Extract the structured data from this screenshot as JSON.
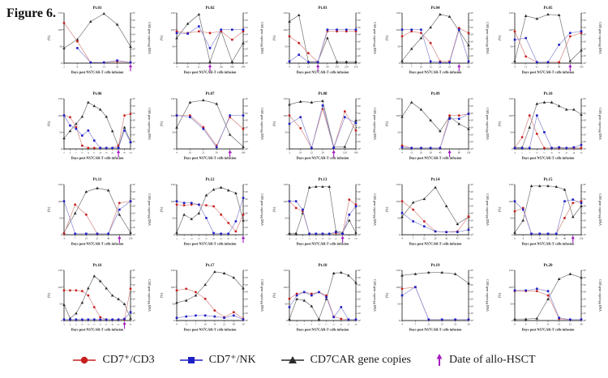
{
  "figure_label": "Figure 6.",
  "axes": {
    "left_label": "(%)",
    "right_label": "CAR gene copies/μg DNA",
    "x_label": "Days post NS7CAR-T cells infusion",
    "left_ticks": [
      0,
      50,
      100,
      150
    ],
    "left_range": [
      0,
      150
    ],
    "right_tick_exponents": [
      0,
      1,
      2,
      3,
      4,
      5,
      6,
      7
    ],
    "right_scale": "log10"
  },
  "colors": {
    "red": "#c81e1e",
    "red_line": "#d4847f",
    "blue": "#1e1ec8",
    "blue_line": "#8585d0",
    "black": "#2b2b2b",
    "black_line": "#6f6f6f",
    "purple": "#a61bc2",
    "axis": "#333333",
    "text": "#111111"
  },
  "legend": [
    {
      "name": "cd7-cd3",
      "label": "CD7⁺/CD3",
      "marker": "circle",
      "color": "#c81e1e"
    },
    {
      "name": "cd7-nk",
      "label": "CD7⁺/NK",
      "marker": "square",
      "color": "#1e1ec8"
    },
    {
      "name": "car-gene-copies",
      "label": "CD7CAR gene copies",
      "marker": "triangle",
      "color": "#2b2b2b"
    },
    {
      "name": "allo-hsct-date",
      "label": "Date of allo-HSCT",
      "marker": "arrow",
      "color": "#a61bc2"
    }
  ],
  "chart_data": [
    {
      "type": "line",
      "title": "Pt.01",
      "x_ticks": [
        "2",
        "6",
        "10",
        "13",
        "26",
        "45"
      ],
      "cd7_cd3_pct": [
        120,
        65,
        2,
        2,
        5,
        2
      ],
      "cd7_nk_pct": [
        null,
        45,
        2,
        2,
        8,
        2
      ],
      "car_copies_log10": [
        2.1,
        3.3,
        5.8,
        6.9,
        5.4,
        2.3
      ],
      "allo_hsct_arrow_index": 5
    },
    {
      "type": "line",
      "title": "Pt.02",
      "x_ticks": [
        "4",
        "10",
        "21",
        "60",
        "120",
        "180",
        "240"
      ],
      "cd7_cd3_pct": [
        95,
        90,
        95,
        90,
        95,
        70,
        95
      ],
      "cd7_nk_pct": [
        90,
        88,
        110,
        45,
        100,
        100,
        100
      ],
      "car_copies_log10": [
        3.5,
        5.5,
        6.8,
        0.2,
        4.5,
        0.2,
        2.8
      ],
      "allo_hsct_arrow_index": 3
    },
    {
      "type": "line",
      "title": "Pt.03",
      "x_ticks": [
        "4",
        "10",
        "21",
        "46",
        "90",
        "170",
        "210",
        "270"
      ],
      "cd7_cd3_pct": [
        80,
        60,
        30,
        3,
        95,
        95,
        95,
        95
      ],
      "cd7_nk_pct": [
        5,
        25,
        3,
        3,
        100,
        100,
        100,
        100
      ],
      "car_copies_log10": [
        5.8,
        6.7,
        0.2,
        0.2,
        3.5,
        0.2,
        0.2,
        0.2
      ],
      "allo_hsct_arrow_index": 3
    },
    {
      "type": "line",
      "title": "Pt.04",
      "x_ticks": [
        "4",
        "7",
        "10",
        "12",
        "21",
        "25",
        "45",
        "60"
      ],
      "cd7_cd3_pct": [
        80,
        95,
        90,
        60,
        5,
        5,
        105,
        90
      ],
      "cd7_nk_pct": [
        100,
        100,
        100,
        5,
        2,
        2,
        100,
        5
      ],
      "car_copies_log10": [
        0.3,
        2.0,
        3.5,
        5.0,
        6.8,
        6.5,
        4.5,
        2.5
      ],
      "allo_hsct_arrow_index": 6
    },
    {
      "type": "line",
      "title": "Pt.05",
      "x_ticks": [
        "4",
        "11",
        "21",
        "27",
        "49",
        "56",
        "150"
      ],
      "cd7_cd3_pct": [
        95,
        20,
        3,
        3,
        3,
        80,
        90
      ],
      "cd7_nk_pct": [
        70,
        75,
        3,
        3,
        55,
        90,
        95
      ],
      "car_copies_log10": [
        0.3,
        6.6,
        6.2,
        6.8,
        6.7,
        0.3,
        1.8
      ],
      "allo_hsct_arrow_index": 5
    },
    {
      "type": "line",
      "title": "Pt.06",
      "x_ticks": [
        "0",
        "4",
        "7",
        "10",
        "14",
        "21",
        "28",
        "29",
        "45",
        "60",
        "90",
        "120"
      ],
      "cd7_cd3_pct": [
        100,
        95,
        65,
        10,
        3,
        3,
        3,
        3,
        3,
        10,
        100,
        105
      ],
      "cd7_nk_pct": [
        100,
        70,
        60,
        40,
        55,
        25,
        3,
        3,
        3,
        3,
        55,
        20
      ],
      "car_copies_log10": [
        1.5,
        2.5,
        3.5,
        4.5,
        6.5,
        6.0,
        5.5,
        4.5,
        2.5,
        0.3,
        3.0,
        1.0
      ],
      "allo_hsct_arrow_index": 9
    },
    {
      "type": "line",
      "title": "Pt.07",
      "x_ticks": [
        "4",
        "10",
        "21",
        "29",
        "110",
        "190"
      ],
      "cd7_cd3_pct": [
        100,
        100,
        65,
        10,
        95,
        60
      ],
      "cd7_nk_pct": [
        100,
        95,
        60,
        5,
        100,
        100
      ],
      "car_copies_log10": [
        3.0,
        6.5,
        6.8,
        6.3,
        2.0,
        0.3
      ],
      "allo_hsct_arrow_index": 4
    },
    {
      "type": "line",
      "title": "Pt.08",
      "x_ticks": [
        "3",
        "10",
        "22",
        "29",
        "60",
        "120",
        "190"
      ],
      "cd7_cd3_pct": [
        100,
        62,
        3,
        120,
        3,
        112,
        55
      ],
      "cd7_nk_pct": [
        75,
        95,
        3,
        130,
        3,
        95,
        78
      ],
      "car_copies_log10": [
        6.2,
        6.6,
        6.5,
        6.7,
        0.3,
        0.3,
        4.0
      ],
      "allo_hsct_arrow_index": 4
    },
    {
      "type": "line",
      "title": "Pt.09",
      "x_ticks": [
        "4",
        "11",
        "20",
        "28",
        "45",
        "60",
        "90",
        "150"
      ],
      "cd7_cd3_pct": [
        10,
        3,
        3,
        3,
        3,
        100,
        100,
        105
      ],
      "cd7_nk_pct": [
        5,
        3,
        3,
        3,
        3,
        90,
        90,
        105
      ],
      "car_copies_log10": [
        4.5,
        6.5,
        5.5,
        4.0,
        2.5,
        4.5,
        3.5,
        2.8
      ],
      "allo_hsct_arrow_index": 5
    },
    {
      "type": "line",
      "title": "Pt.10",
      "x_ticks": [
        "-4",
        "5",
        "7",
        "10",
        "15",
        "20",
        "29",
        "43",
        "48",
        "60"
      ],
      "cd7_cd3_pct": [
        3,
        35,
        100,
        45,
        3,
        3,
        3,
        3,
        3,
        3
      ],
      "cd7_nk_pct": [
        3,
        3,
        3,
        100,
        50,
        3,
        5,
        3,
        5,
        12
      ],
      "car_copies_log10": [
        0.2,
        0.2,
        3.0,
        6.3,
        6.5,
        6.5,
        6.0,
        5.5,
        5.5,
        4.8
      ],
      "allo_hsct_arrow_index": null
    },
    {
      "type": "line",
      "title": "Pt.11",
      "x_ticks": [
        "-3",
        "7",
        "13",
        "21",
        "46",
        "90",
        "150"
      ],
      "cd7_cd3_pct": [
        3,
        90,
        60,
        3,
        3,
        95,
        100
      ],
      "cd7_nk_pct": [
        100,
        3,
        3,
        3,
        3,
        75,
        100
      ],
      "car_copies_log10": [
        0.3,
        3.0,
        6.0,
        6.5,
        6.2,
        2.8,
        0.3
      ],
      "allo_hsct_arrow_index": 5
    },
    {
      "type": "line",
      "title": "Pt.12",
      "x_ticks": [
        "4",
        "8",
        "14",
        "18",
        "23",
        "28",
        "42",
        "60",
        "90",
        "136"
      ],
      "cd7_cd3_pct": [
        90,
        88,
        90,
        90,
        88,
        85,
        60,
        35,
        10,
        60
      ],
      "cd7_nk_pct": [
        100,
        95,
        95,
        90,
        50,
        5,
        3,
        3,
        40,
        110
      ],
      "car_copies_log10": [
        0.3,
        2.8,
        2.2,
        3.0,
        5.5,
        6.3,
        6.6,
        6.2,
        5.8,
        2.0
      ],
      "allo_hsct_arrow_index": 9
    },
    {
      "type": "line",
      "title": "Pt.13",
      "x_ticks": [
        "-4",
        "4",
        "7",
        "11",
        "15",
        "22",
        "24",
        "45",
        "60",
        "90",
        "150"
      ],
      "cd7_cd3_pct": [
        100,
        80,
        70,
        3,
        3,
        3,
        3,
        5,
        3,
        105,
        90
      ],
      "cd7_nk_pct": [
        100,
        100,
        75,
        3,
        3,
        3,
        3,
        8,
        3,
        60,
        85
      ],
      "car_copies_log10": [
        0.2,
        0.2,
        3.0,
        6.6,
        6.7,
        6.7,
        6.7,
        0.5,
        0.3,
        2.0,
        0.3
      ],
      "allo_hsct_arrow_index": 8
    },
    {
      "type": "line",
      "title": "Pt.14",
      "x_ticks": [
        "4",
        "7",
        "12",
        "20",
        "42",
        "47",
        "60"
      ],
      "cd7_cd3_pct": [
        100,
        75,
        40,
        10,
        8,
        10,
        55
      ],
      "cd7_nk_pct": [
        65,
        40,
        25,
        10,
        8,
        8,
        15
      ],
      "car_copies_log10": [
        2.5,
        4.5,
        5.0,
        6.6,
        4.0,
        1.5,
        2.5
      ],
      "allo_hsct_arrow_index": null
    },
    {
      "type": "line",
      "title": "Pt.15",
      "x_ticks": [
        "0",
        "4",
        "7",
        "14",
        "21",
        "28",
        "60",
        "90",
        "120"
      ],
      "cd7_cd3_pct": [
        70,
        80,
        3,
        3,
        3,
        3,
        50,
        95,
        100
      ],
      "cd7_nk_pct": [
        100,
        75,
        3,
        3,
        3,
        3,
        100,
        105,
        95
      ],
      "car_copies_log10": [
        0.3,
        2.0,
        6.8,
        6.8,
        6.8,
        6.7,
        6.3,
        2.5,
        4.0
      ],
      "allo_hsct_arrow_index": 7
    },
    {
      "type": "line",
      "title": "Pt.16",
      "x_ticks": [
        "-2",
        "4",
        "8",
        "10",
        "12",
        "17",
        "21",
        "31",
        "38",
        "42",
        "60",
        "90"
      ],
      "cd7_cd3_pct": [
        90,
        90,
        90,
        88,
        75,
        40,
        10,
        3,
        3,
        3,
        3,
        95
      ],
      "cd7_nk_pct": [
        3,
        3,
        3,
        3,
        3,
        3,
        3,
        3,
        3,
        3,
        5,
        25
      ],
      "car_copies_log10": [
        2.2,
        0.3,
        1.0,
        2.5,
        4.5,
        6.2,
        5.5,
        4.5,
        3.5,
        3.0,
        2.3,
        0.3
      ],
      "allo_hsct_arrow_index": 10
    },
    {
      "type": "line",
      "title": "Pt.17",
      "x_ticks": [
        "0",
        "4",
        "7",
        "10",
        "14",
        "21",
        "28",
        "50"
      ],
      "cd7_cd3_pct": [
        90,
        95,
        85,
        65,
        30,
        10,
        25,
        5
      ],
      "cd7_nk_pct": [
        8,
        12,
        15,
        15,
        12,
        8,
        15,
        3
      ],
      "car_copies_log10": [
        2.5,
        2.8,
        3.5,
        5.0,
        6.8,
        6.6,
        6.0,
        4.5
      ],
      "allo_hsct_arrow_index": null
    },
    {
      "type": "line",
      "title": "Pt.18",
      "x_ticks": [
        "0",
        "4",
        "7",
        "11",
        "13",
        "17",
        "23",
        "26",
        "32",
        "48"
      ],
      "cd7_cd3_pct": [
        65,
        80,
        85,
        80,
        85,
        75,
        12,
        5,
        3,
        3
      ],
      "cd7_nk_pct": [
        40,
        75,
        85,
        75,
        85,
        70,
        10,
        40,
        3,
        3
      ],
      "car_copies_log10": [
        0.2,
        3.0,
        2.8,
        2.0,
        0.2,
        3.0,
        6.6,
        6.7,
        6.3,
        5.3
      ],
      "allo_hsct_arrow_index": null
    },
    {
      "type": "line",
      "title": "Pt.19",
      "x_ticks": [
        "4",
        "7",
        "11",
        "15",
        "22",
        "28"
      ],
      "cd7_cd3_pct": [
        95,
        100,
        3,
        3,
        3,
        3
      ],
      "cd7_nk_pct": [
        75,
        100,
        3,
        3,
        3,
        3
      ],
      "car_copies_log10": [
        6.3,
        6.5,
        6.7,
        6.7,
        6.5,
        5.2
      ],
      "allo_hsct_arrow_index": null
    },
    {
      "type": "line",
      "title": "Pt.20",
      "x_ticks": [
        "0",
        "4",
        "7",
        "11",
        "15",
        "21",
        "29"
      ],
      "cd7_cd3_pct": [
        88,
        88,
        88,
        75,
        5,
        3,
        3
      ],
      "cd7_nk_pct": [
        90,
        90,
        95,
        88,
        8,
        3,
        3
      ],
      "car_copies_log10": [
        0.2,
        0.2,
        0.3,
        3.0,
        5.8,
        6.5,
        6.0
      ],
      "allo_hsct_arrow_index": null
    }
  ]
}
